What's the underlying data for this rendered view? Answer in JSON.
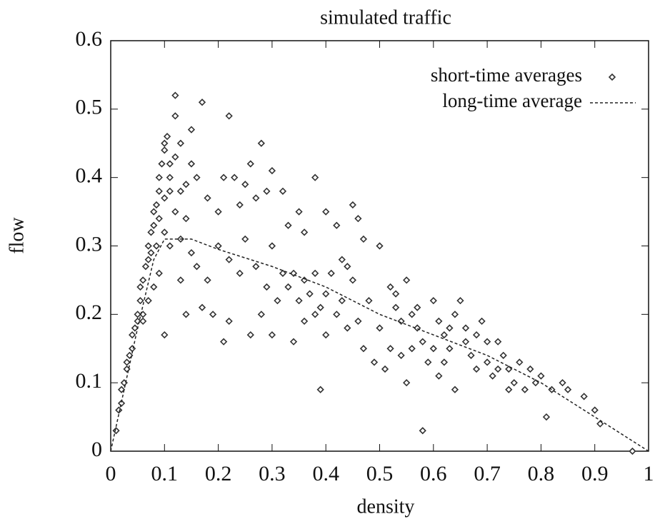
{
  "chart_data": {
    "type": "scatter",
    "title": "simulated traffic",
    "x_label": "density",
    "y_label": "flow",
    "xlim": [
      0,
      1
    ],
    "ylim": [
      0,
      0.6
    ],
    "xticks": [
      0,
      0.1,
      0.2,
      0.3,
      0.4,
      0.5,
      0.6,
      0.7,
      0.8,
      0.9,
      1
    ],
    "yticks": [
      0,
      0.1,
      0.2,
      0.3,
      0.4,
      0.5,
      0.6
    ],
    "legend": "top-right",
    "series": [
      {
        "name": "short-time averages",
        "color": "#333333",
        "marker": "diamond",
        "x": [
          0.01,
          0.015,
          0.02,
          0.02,
          0.025,
          0.03,
          0.03,
          0.035,
          0.04,
          0.04,
          0.045,
          0.05,
          0.05,
          0.055,
          0.055,
          0.06,
          0.06,
          0.065,
          0.07,
          0.07,
          0.075,
          0.075,
          0.08,
          0.08,
          0.085,
          0.09,
          0.09,
          0.095,
          0.1,
          0.1,
          0.105,
          0.11,
          0.11,
          0.09,
          0.08,
          0.07,
          0.06,
          0.12,
          0.17,
          0.15,
          0.22,
          0.12,
          0.13,
          0.28,
          0.12,
          0.15,
          0.26,
          0.3,
          0.38,
          0.21,
          0.23,
          0.25,
          0.29,
          0.32,
          0.18,
          0.2,
          0.14,
          0.24,
          0.27,
          0.35,
          0.4,
          0.45,
          0.46,
          0.33,
          0.36,
          0.42,
          0.47,
          0.5,
          0.3,
          0.25,
          0.2,
          0.15,
          0.16,
          0.13,
          0.14,
          0.1,
          0.17,
          0.19,
          0.21,
          0.22,
          0.26,
          0.28,
          0.3,
          0.31,
          0.34,
          0.36,
          0.39,
          0.38,
          0.4,
          0.41,
          0.43,
          0.44,
          0.45,
          0.48,
          0.46,
          0.47,
          0.49,
          0.5,
          0.52,
          0.53,
          0.54,
          0.55,
          0.56,
          0.57,
          0.58,
          0.58,
          0.55,
          0.6,
          0.61,
          0.62,
          0.63,
          0.64,
          0.65,
          0.66,
          0.67,
          0.68,
          0.69,
          0.7,
          0.71,
          0.72,
          0.73,
          0.74,
          0.75,
          0.76,
          0.77,
          0.78,
          0.79,
          0.8,
          0.81,
          0.82,
          0.84,
          0.85,
          0.88,
          0.9,
          0.91,
          0.97,
          0.32,
          0.34,
          0.36,
          0.38,
          0.33,
          0.35,
          0.37,
          0.39,
          0.42,
          0.44,
          0.4,
          0.43,
          0.27,
          0.29,
          0.24,
          0.22,
          0.18,
          0.11,
          0.12,
          0.13,
          0.1,
          0.1,
          0.11,
          0.09,
          0.085,
          0.13,
          0.14,
          0.16,
          0.59,
          0.6,
          0.61,
          0.62,
          0.64,
          0.66,
          0.7,
          0.72,
          0.74,
          0.52,
          0.51,
          0.54,
          0.56,
          0.53,
          0.57,
          0.63,
          0.68
        ],
        "values": [
          0.03,
          0.06,
          0.07,
          0.09,
          0.1,
          0.12,
          0.13,
          0.14,
          0.15,
          0.17,
          0.18,
          0.19,
          0.2,
          0.22,
          0.24,
          0.25,
          0.2,
          0.27,
          0.28,
          0.3,
          0.29,
          0.32,
          0.33,
          0.35,
          0.36,
          0.38,
          0.4,
          0.42,
          0.44,
          0.45,
          0.46,
          0.42,
          0.38,
          0.26,
          0.24,
          0.22,
          0.19,
          0.52,
          0.51,
          0.47,
          0.49,
          0.49,
          0.45,
          0.45,
          0.43,
          0.42,
          0.42,
          0.41,
          0.4,
          0.4,
          0.4,
          0.39,
          0.38,
          0.38,
          0.37,
          0.35,
          0.34,
          0.36,
          0.37,
          0.35,
          0.35,
          0.36,
          0.34,
          0.33,
          0.32,
          0.33,
          0.31,
          0.3,
          0.3,
          0.31,
          0.3,
          0.29,
          0.27,
          0.25,
          0.2,
          0.17,
          0.21,
          0.2,
          0.16,
          0.19,
          0.17,
          0.2,
          0.17,
          0.22,
          0.16,
          0.19,
          0.09,
          0.2,
          0.23,
          0.26,
          0.28,
          0.27,
          0.25,
          0.22,
          0.19,
          0.15,
          0.13,
          0.18,
          0.24,
          0.21,
          0.19,
          0.25,
          0.2,
          0.18,
          0.16,
          0.03,
          0.1,
          0.22,
          0.19,
          0.17,
          0.15,
          0.2,
          0.22,
          0.18,
          0.14,
          0.12,
          0.19,
          0.13,
          0.11,
          0.16,
          0.14,
          0.12,
          0.1,
          0.13,
          0.09,
          0.12,
          0.1,
          0.11,
          0.05,
          0.09,
          0.1,
          0.09,
          0.08,
          0.06,
          0.04,
          0,
          0.26,
          0.26,
          0.25,
          0.26,
          0.24,
          0.22,
          0.23,
          0.21,
          0.2,
          0.18,
          0.17,
          0.22,
          0.27,
          0.24,
          0.26,
          0.28,
          0.25,
          0.3,
          0.35,
          0.31,
          0.32,
          0.37,
          0.4,
          0.34,
          0.3,
          0.38,
          0.39,
          0.4,
          0.13,
          0.15,
          0.11,
          0.13,
          0.09,
          0.16,
          0.16,
          0.12,
          0.09,
          0.15,
          0.12,
          0.14,
          0.15,
          0.23,
          0.21,
          0.18,
          0.17
        ]
      },
      {
        "name": "long-time average",
        "color": "#222222",
        "line_style": "dashed",
        "x": [
          0,
          0.05,
          0.08,
          0.1,
          0.15,
          0.2,
          0.3,
          0.4,
          0.5,
          0.6,
          0.7,
          0.8,
          0.9,
          1
        ],
        "values": [
          0,
          0.18,
          0.28,
          0.31,
          0.31,
          0.295,
          0.27,
          0.24,
          0.2,
          0.17,
          0.14,
          0.1,
          0.05,
          0
        ]
      }
    ]
  }
}
